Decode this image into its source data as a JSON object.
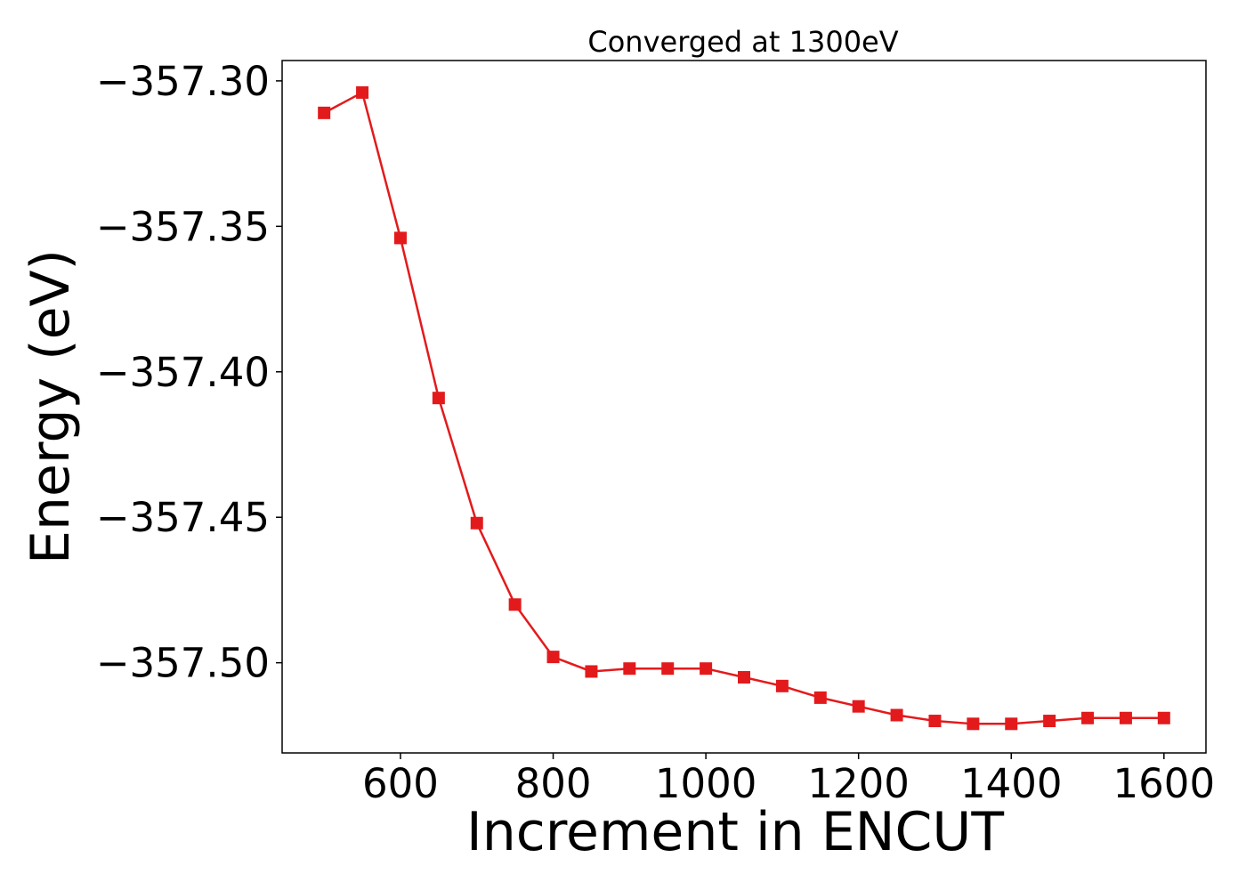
{
  "chart_data": {
    "type": "line",
    "title": "Converged at 1300eV",
    "xlabel": "Increment in ENCUT",
    "ylabel": "Energy (eV)",
    "xlim": [
      445,
      1655
    ],
    "ylim": [
      -357.531,
      -357.293
    ],
    "xticks": [
      600,
      800,
      1000,
      1200,
      1400,
      1600
    ],
    "xtick_labels": [
      "600",
      "800",
      "1000",
      "1200",
      "1400",
      "1600"
    ],
    "yticks": [
      -357.3,
      -357.35,
      -357.4,
      -357.45,
      -357.5
    ],
    "ytick_labels": [
      "−357.30",
      "−357.35",
      "−357.40",
      "−357.45",
      "−357.50"
    ],
    "grid": false,
    "series": [
      {
        "color": "#e31a1c",
        "marker": "square",
        "x": [
          500,
          550,
          600,
          650,
          700,
          750,
          800,
          850,
          900,
          950,
          1000,
          1050,
          1100,
          1150,
          1200,
          1250,
          1300,
          1350,
          1400,
          1450,
          1500,
          1550,
          1600
        ],
        "y": [
          -357.311,
          -357.304,
          -357.354,
          -357.409,
          -357.452,
          -357.48,
          -357.498,
          -357.503,
          -357.502,
          -357.502,
          -357.502,
          -357.505,
          -357.508,
          -357.512,
          -357.515,
          -357.518,
          -357.52,
          -357.521,
          -357.521,
          -357.52,
          -357.519,
          -357.519,
          -357.519
        ]
      }
    ]
  }
}
